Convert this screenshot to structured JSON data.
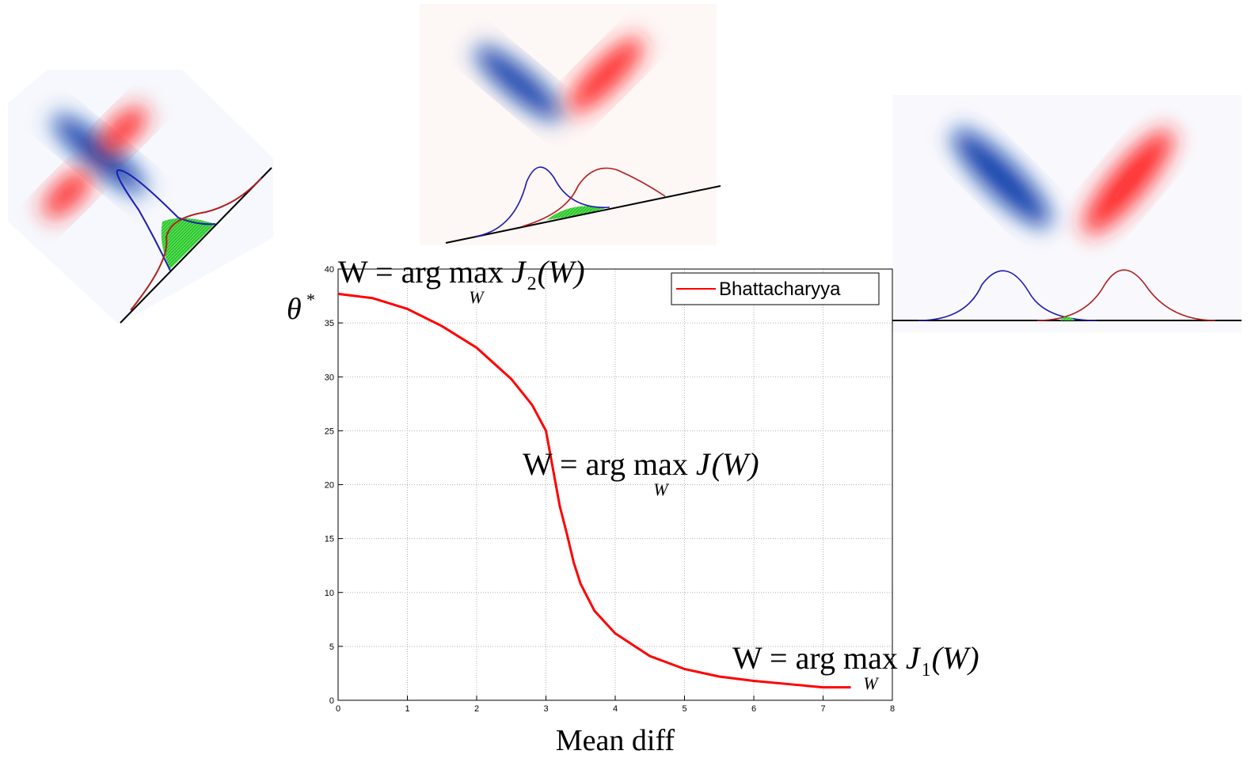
{
  "chart_data": {
    "type": "line",
    "xlabel": "Mean diff",
    "ylabel": "θ",
    "ylabel_sup": "*",
    "x": [
      0,
      0.5,
      1,
      1.5,
      2,
      2.5,
      2.8,
      3,
      3.1,
      3.2,
      3.3,
      3.4,
      3.5,
      3.7,
      4,
      4.5,
      5,
      5.5,
      6,
      6.5,
      7,
      7.4
    ],
    "series": [
      {
        "name": "Bhattacharyya",
        "color": "#ff0000",
        "values": [
          37.7,
          37.3,
          36.3,
          34.7,
          32.7,
          29.8,
          27.4,
          25,
          21.5,
          18,
          15.5,
          12.8,
          10.8,
          8.3,
          6.2,
          4.1,
          2.9,
          2.2,
          1.8,
          1.5,
          1.2,
          1.2
        ]
      }
    ],
    "xlim": [
      0,
      8
    ],
    "xticks": [
      0,
      1,
      2,
      3,
      4,
      5,
      6,
      7,
      8
    ],
    "ylim": [
      0,
      40
    ],
    "yticks": [
      0,
      5,
      10,
      15,
      20,
      25,
      30,
      35,
      40
    ],
    "grid": true,
    "legend": "upper right",
    "annotations": [
      {
        "lhs": "W = arg",
        "op": "max",
        "under": "W",
        "func": "J",
        "subscript": "2",
        "arg": "(W)"
      },
      {
        "lhs": "W = arg",
        "op": "max",
        "under": "W",
        "func": "J",
        "arg": "(W)"
      },
      {
        "lhs": "W = arg",
        "op": "max",
        "under": "W",
        "func": "J",
        "subscript": "1",
        "arg": "(W)"
      }
    ]
  }
}
